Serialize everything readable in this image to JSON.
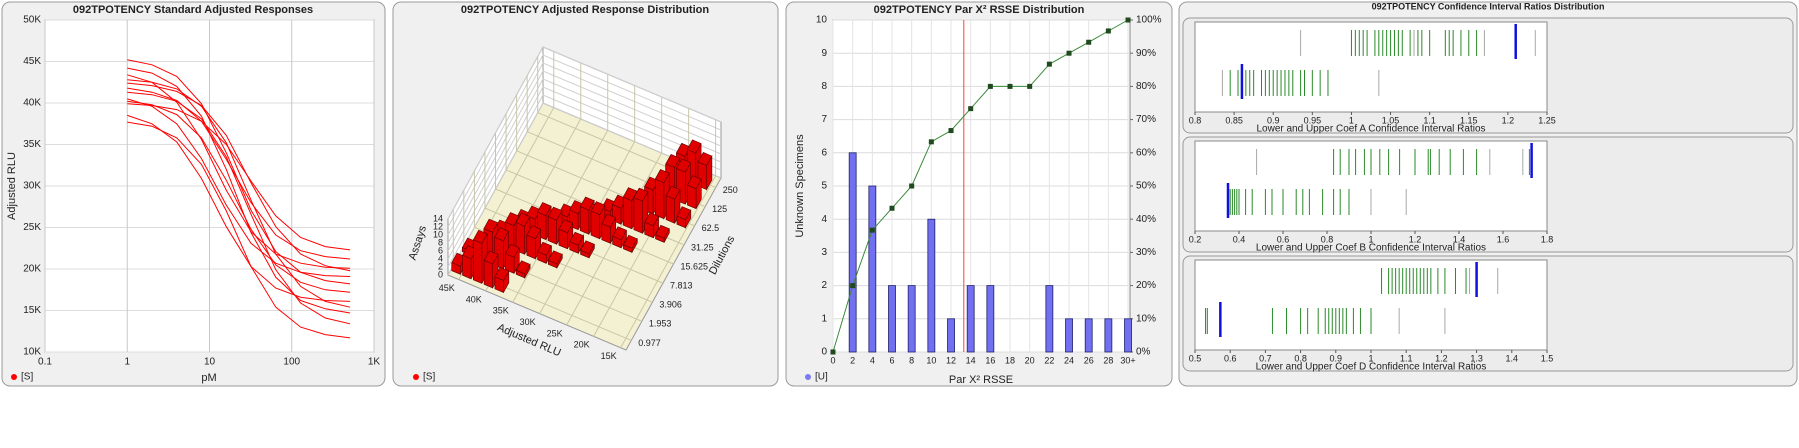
{
  "chart_data": [
    {
      "type": "line",
      "title": "092TPOTENCY Standard Adjusted Responses",
      "x_label": "pM",
      "y_label": "Adjusted RLU",
      "legend": "[S]",
      "color": "#ff0000",
      "x_log": true,
      "grid": true,
      "x": [
        1,
        2,
        4,
        8,
        16,
        32,
        64,
        128,
        256,
        512
      ],
      "series": [
        {
          "values": [
            45200,
            44600,
            43200,
            39900,
            34000,
            27100,
            22100,
            19600,
            18600,
            18200
          ]
        },
        {
          "values": [
            43400,
            42500,
            40100,
            35600,
            29500,
            24500,
            21800,
            20700,
            20200,
            20100
          ]
        },
        {
          "values": [
            42800,
            42500,
            41700,
            39600,
            35200,
            28300,
            21800,
            17900,
            16100,
            15400
          ]
        },
        {
          "values": [
            41800,
            41300,
            40300,
            37800,
            33200,
            28000,
            24100,
            22200,
            21500,
            21200
          ]
        },
        {
          "values": [
            41300,
            41000,
            40200,
            38100,
            33500,
            26600,
            19900,
            15900,
            14100,
            13400
          ]
        },
        {
          "values": [
            40500,
            39600,
            37500,
            33300,
            27700,
            23100,
            20700,
            19600,
            19200,
            19100
          ]
        },
        {
          "values": [
            40200,
            39800,
            38600,
            35800,
            30700,
            24800,
            20500,
            18400,
            17500,
            17200
          ]
        },
        {
          "values": [
            39900,
            39700,
            39200,
            37800,
            35000,
            30600,
            26400,
            23800,
            22700,
            22300
          ]
        },
        {
          "values": [
            38500,
            37500,
            35300,
            30900,
            25100,
            20300,
            17700,
            16600,
            16200,
            16100
          ]
        },
        {
          "values": [
            37700,
            37200,
            35800,
            32600,
            27000,
            20300,
            15400,
            13000,
            12100,
            11700
          ]
        },
        {
          "values": [
            42400,
            42100,
            41400,
            39700,
            36100,
            30400,
            25100,
            21800,
            20400,
            19800
          ]
        },
        {
          "values": [
            44200,
            43600,
            42000,
            38400,
            32000,
            24400,
            19000,
            16200,
            15200,
            14700
          ]
        }
      ],
      "xlim": [
        0.1,
        1000
      ],
      "xticks": [
        0.1,
        1,
        10,
        100,
        {
          "value": 1000,
          "label": "1K"
        }
      ],
      "ylim": [
        10000,
        50000
      ],
      "yticks": [
        {
          "value": 10000,
          "label": "10K"
        },
        {
          "value": 15000,
          "label": "15K"
        },
        {
          "value": 20000,
          "label": "20K"
        },
        {
          "value": 25000,
          "label": "25K"
        },
        {
          "value": 30000,
          "label": "30K"
        },
        {
          "value": 35000,
          "label": "35K"
        },
        {
          "value": 40000,
          "label": "40K"
        },
        {
          "value": 45000,
          "label": "45K"
        },
        {
          "value": 50000,
          "label": "50K"
        }
      ]
    },
    {
      "type": "bar3d",
      "title": "092TPOTENCY Adjusted Response Distribution",
      "x_label": "Adjusted RLU",
      "y_label": "Dilutions",
      "z_label": "Assays",
      "legend": "[S]",
      "color": "#e00000",
      "x": [
        46000,
        44000,
        42000,
        40000,
        38000,
        36000,
        34000,
        32000,
        30000,
        28000,
        26000,
        24000,
        22000,
        20000,
        18000,
        16000
      ],
      "categories": [
        "0.977",
        "1.953",
        "3.906",
        "7.813",
        "15.625",
        "31.25",
        "62.5",
        "125",
        "250"
      ],
      "values": [
        [
          2,
          5,
          10,
          6,
          3,
          0,
          0,
          0,
          0,
          0,
          0,
          0,
          0,
          0,
          0,
          0
        ],
        [
          1,
          3,
          8,
          7,
          4,
          1,
          0,
          0,
          0,
          0,
          0,
          0,
          0,
          0,
          0,
          0
        ],
        [
          0,
          1,
          3,
          6,
          7,
          5,
          2,
          1,
          0,
          0,
          0,
          0,
          0,
          0,
          0,
          0
        ],
        [
          0,
          0,
          0,
          2,
          4,
          6,
          6,
          4,
          2,
          1,
          0,
          0,
          0,
          0,
          0,
          0
        ],
        [
          0,
          0,
          0,
          0,
          0,
          0,
          2,
          4,
          6,
          6,
          4,
          2,
          1,
          0,
          0,
          0
        ],
        [
          0,
          0,
          0,
          0,
          0,
          0,
          0,
          0,
          0,
          2,
          4,
          7,
          8,
          3,
          1,
          0
        ],
        [
          0,
          0,
          0,
          0,
          0,
          0,
          0,
          0,
          0,
          0,
          0,
          2,
          6,
          9,
          6,
          2
        ],
        [
          0,
          0,
          0,
          0,
          0,
          0,
          0,
          0,
          0,
          0,
          0,
          0,
          3,
          8,
          8,
          5
        ],
        [
          0,
          0,
          0,
          0,
          0,
          0,
          0,
          0,
          0,
          0,
          0,
          0,
          2,
          6,
          8,
          6
        ]
      ],
      "xlim": [
        47000,
        14000
      ],
      "xticks": [
        {
          "value": 45000,
          "label": "45K"
        },
        {
          "value": 40000,
          "label": "40K"
        },
        {
          "value": 35000,
          "label": "35K"
        },
        {
          "value": 30000,
          "label": "30K"
        },
        {
          "value": 25000,
          "label": "25K"
        },
        {
          "value": 20000,
          "label": "20K"
        },
        {
          "value": 15000,
          "label": "15K"
        }
      ],
      "zlim": [
        0,
        14
      ],
      "zticks": [
        0,
        2,
        4,
        6,
        8,
        10,
        12,
        14
      ]
    },
    {
      "type": "bar_line",
      "title": "092TPOTENCY Par X² RSSE Distribution",
      "x_label": "Par X² RSSE",
      "y_label": "Unknown Specimens",
      "legend": "[U]",
      "legend_color": "#7b7bef",
      "x": [
        0,
        2,
        4,
        6,
        8,
        10,
        12,
        14,
        16,
        18,
        20,
        22,
        24,
        26,
        28,
        30
      ],
      "series": [
        {
          "color": "#7070f0",
          "values": [
            0,
            6,
            5,
            2,
            2,
            4,
            1,
            2,
            2,
            0,
            0,
            2,
            1,
            1,
            1,
            1
          ]
        },
        {
          "color": "#3a8a3a",
          "axis": "y2",
          "values": [
            0,
            20,
            36.7,
            43.3,
            50,
            63.3,
            66.7,
            73.3,
            80,
            80,
            80,
            86.7,
            90,
            93.3,
            96.7,
            100
          ]
        }
      ],
      "reference_x": 13.3,
      "reference_color": "#ff4040",
      "grid": true,
      "xlim": [
        0,
        30.2
      ],
      "xticks": [
        0,
        2,
        4,
        6,
        8,
        10,
        12,
        14,
        16,
        18,
        20,
        22,
        24,
        26,
        28,
        {
          "value": 30,
          "label": "30+"
        }
      ],
      "ylim": [
        0,
        10
      ],
      "yticks": [
        0,
        1,
        2,
        3,
        4,
        5,
        6,
        7,
        8,
        9,
        10
      ],
      "y2lim": [
        0,
        100
      ],
      "y2ticks": [
        {
          "value": 0,
          "label": "0%"
        },
        {
          "value": 10,
          "label": "10%"
        },
        {
          "value": 20,
          "label": "20%"
        },
        {
          "value": 30,
          "label": "30%"
        },
        {
          "value": 40,
          "label": "40%"
        },
        {
          "value": 50,
          "label": "50%"
        },
        {
          "value": 60,
          "label": "60%"
        },
        {
          "value": 70,
          "label": "70%"
        },
        {
          "value": 80,
          "label": "80%"
        },
        {
          "value": 90,
          "label": "90%"
        },
        {
          "value": 100,
          "label": "100%"
        }
      ]
    },
    {
      "type": "strip",
      "title": "092TPOTENCY Confidence Interval Ratios Distribution",
      "color": "#2a8a2a",
      "excluded_color": "#a8a8a8",
      "marker_color": "#1010dd",
      "panels": [
        {
          "x_label": "Lower and Upper Coef A Confidence Interval Ratios",
          "xlim": [
            0.8,
            1.25
          ],
          "xticks": [
            0.8,
            0.85,
            0.9,
            0.95,
            1,
            1.05,
            1.1,
            1.15,
            1.2,
            1.25
          ],
          "rows": [
            {
              "values": [
                1.0,
                1.005,
                1.01,
                1.015,
                1.02,
                1.03,
                1.035,
                1.04,
                1.045,
                1.05,
                1.055,
                1.06,
                1.065,
                1.075,
                1.085,
                1.09,
                1.1,
                1.12,
                1.125,
                1.13,
                1.14,
                1.15,
                1.16
              ],
              "excluded": [
                0.935,
                1.08,
                1.17,
                1.235
              ],
              "marker": 1.21
            },
            {
              "values": [
                0.845,
                0.855,
                0.865,
                0.87,
                0.875,
                0.885,
                0.89,
                0.895,
                0.9,
                0.905,
                0.91,
                0.915,
                0.92,
                0.925,
                0.935,
                0.94,
                0.95,
                0.96,
                0.97
              ],
              "excluded": [
                0.835,
                1.035
              ],
              "marker": 0.86
            }
          ]
        },
        {
          "x_label": "Lower and Upper Coef B Confidence Interval Ratios",
          "xlim": [
            0.2,
            1.8
          ],
          "xticks": [
            0.2,
            0.4,
            0.6,
            0.8,
            1,
            1.2,
            1.4,
            1.6,
            1.8
          ],
          "rows": [
            {
              "values": [
                0.83,
                0.86,
                0.9,
                0.93,
                0.97,
                1.0,
                1.04,
                1.08,
                1.13,
                1.2,
                1.26,
                1.27,
                1.31,
                1.36,
                1.42,
                1.48,
                1.72
              ],
              "excluded": [
                0.48,
                1.54,
                1.69
              ],
              "marker": 1.73
            },
            {
              "values": [
                0.36,
                0.37,
                0.38,
                0.39,
                0.4,
                0.43,
                0.46,
                0.52,
                0.55,
                0.6,
                0.66,
                0.69,
                0.72,
                0.78,
                0.83,
                0.86,
                0.9
              ],
              "excluded": [
                1.0,
                1.16
              ],
              "marker": 0.35
            }
          ]
        },
        {
          "x_label": "Lower and Upper Coef D Confidence Interval Ratios",
          "xlim": [
            0.5,
            1.5
          ],
          "xticks": [
            0.5,
            0.6,
            0.7,
            0.8,
            0.9,
            1,
            1.1,
            1.2,
            1.3,
            1.4,
            1.5
          ],
          "rows": [
            {
              "values": [
                1.03,
                1.05,
                1.06,
                1.07,
                1.08,
                1.09,
                1.1,
                1.11,
                1.12,
                1.13,
                1.14,
                1.15,
                1.16,
                1.17,
                1.19,
                1.21,
                1.24,
                1.27
              ],
              "excluded": [
                1.28,
                1.36
              ],
              "marker": 1.3
            },
            {
              "values": [
                0.53,
                0.535,
                0.72,
                0.76,
                0.8,
                0.82,
                0.85,
                0.87,
                0.88,
                0.89,
                0.9,
                0.91,
                0.92,
                0.93,
                0.95,
                0.97,
                1.0
              ],
              "excluded": [
                1.08,
                1.21
              ],
              "marker": 0.572
            }
          ]
        }
      ]
    }
  ]
}
